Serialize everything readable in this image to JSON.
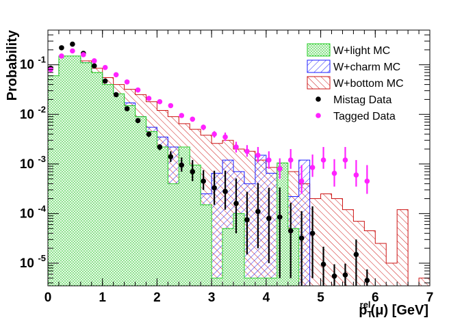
{
  "chart_data": {
    "type": "histogram",
    "ylabel": "Probability",
    "xlabel": {
      "main": "p",
      "sub": "T",
      "sup": "rel",
      "arg": "(μ) [GeV]"
    },
    "xlim": [
      0,
      7
    ],
    "ylim": [
      3.5e-06,
      0.5
    ],
    "yscale": "log",
    "bin_width": 0.2,
    "x_ticks": [
      0,
      1,
      2,
      3,
      4,
      5,
      6,
      7
    ],
    "x_tick_labels": [
      "0",
      "1",
      "2",
      "3",
      "4",
      "5",
      "6",
      "7"
    ],
    "y_ticks": [
      1e-05,
      0.0001,
      0.001,
      0.01,
      0.1
    ],
    "y_tick_labels": [
      {
        "base": "10",
        "exp": "-5"
      },
      {
        "base": "10",
        "exp": "-4"
      },
      {
        "base": "10",
        "exp": "-3"
      },
      {
        "base": "10",
        "exp": "-2"
      },
      {
        "base": "10",
        "exp": "-1"
      }
    ],
    "legend": {
      "position": "top-right",
      "entries": [
        {
          "label": "W+light MC",
          "kind": "light"
        },
        {
          "label": "W+charm MC",
          "kind": "charm"
        },
        {
          "label": "W+bottom MC",
          "kind": "bottom"
        },
        {
          "label": "Mistag Data",
          "kind": "mistag"
        },
        {
          "label": "Tagged Data",
          "kind": "tagged"
        }
      ]
    },
    "colors": {
      "light": "#22cc22",
      "charm": "#1a1aff",
      "bottom": "#cc1111",
      "mistag": "#000000",
      "tagged": "#ff22ff"
    },
    "histograms": [
      {
        "name": "W+bottom MC",
        "kind": "bottom",
        "values": [
          0.047,
          0.1,
          0.13,
          0.12,
          0.085,
          0.055,
          0.04,
          0.032,
          0.025,
          0.018,
          0.012,
          0.009,
          0.0065,
          0.005,
          0.0038,
          0.0026,
          0.003,
          0.002,
          0.0018,
          0.0012,
          0.00085,
          0.00055,
          0.0007,
          0.0004,
          0.0002,
          0.00025,
          0.0002,
          0.00012,
          7e-05,
          4.5e-05,
          2.5e-05,
          1e-05,
          0.00012,
          0.0,
          5e-06,
          0.0
        ]
      },
      {
        "name": "W+charm MC",
        "kind": "charm",
        "values": [
          0.05,
          0.12,
          0.14,
          0.11,
          0.065,
          0.038,
          0.025,
          0.017,
          0.009,
          0.0055,
          0.0035,
          0.0022,
          0.0015,
          0.00065,
          0.00025,
          0.00065,
          0.0012,
          0.0007,
          0.0004,
          0.0015,
          0.00065,
          0.00025,
          0.00022,
          0.0012,
          0.0,
          0.0,
          0.0,
          0.0,
          0.0,
          0.0,
          0.0,
          0.0,
          0.0,
          0.0,
          0.0,
          0.0
        ]
      },
      {
        "name": "W+light MC",
        "kind": "light",
        "values": [
          0.06,
          0.15,
          0.15,
          0.11,
          0.07,
          0.04,
          0.026,
          0.015,
          0.009,
          0.0045,
          0.0022,
          0.0004,
          0.0022,
          0.00095,
          0.00015,
          5e-06,
          5e-05,
          0.0001,
          5e-06,
          5e-06,
          5e-06,
          0.00105,
          5e-05,
          0.0,
          0.0,
          0.0,
          0.0,
          0.0,
          0.0,
          0.0,
          0.0,
          0.0,
          0.0,
          0.0,
          0.0,
          0.0
        ]
      }
    ],
    "mistag_data": {
      "x": [
        0.05,
        0.25,
        0.45,
        0.65,
        0.85,
        1.05,
        1.25,
        1.45,
        1.65,
        1.85,
        2.05,
        2.25,
        2.45,
        2.65,
        2.85,
        3.05,
        3.25,
        3.45,
        3.65,
        3.85,
        4.05,
        4.25,
        4.45,
        4.65,
        4.85,
        5.05,
        5.25,
        5.45,
        5.65,
        5.85
      ],
      "y": [
        0.085,
        0.22,
        0.26,
        0.17,
        0.095,
        0.047,
        0.025,
        0.013,
        0.0075,
        0.004,
        0.0022,
        0.0014,
        0.00095,
        0.0007,
        0.00045,
        0.00033,
        0.00028,
        0.00016,
        7.5e-05,
        0.00011,
        8e-05,
        8.5e-05,
        4.5e-05,
        3.2e-05,
        4e-05,
        9.5e-06,
        5.5e-06,
        5.8e-06,
        1.5e-05,
        4.5e-06
      ],
      "err_lo": [
        0.005,
        0.01,
        0.01,
        0.01,
        0.006,
        0.003,
        0.002,
        0.001,
        0.0008,
        0.0005,
        0.0003,
        0.0003,
        0.00025,
        0.00025,
        0.00015,
        0.00018,
        0.00016,
        0.00012,
        6e-05,
        9e-05,
        7e-05,
        8e-05,
        4e-05,
        3e-05,
        3.5e-05,
        7e-06,
        4e-06,
        4e-06,
        1.2e-05,
        3e-06
      ],
      "err_hi": [
        0.005,
        0.01,
        0.01,
        0.01,
        0.006,
        0.003,
        0.002,
        0.001,
        0.0008,
        0.0005,
        0.0003,
        0.0004,
        0.0004,
        0.0005,
        0.0003,
        0.0004,
        0.00045,
        0.00035,
        0.0002,
        0.0003,
        0.00025,
        0.00025,
        0.00012,
        8e-05,
        0.0001,
        1.2e-05,
        4e-06,
        4e-06,
        1.5e-05,
        3e-06
      ]
    },
    "tagged_data": {
      "x": [
        0.05,
        0.25,
        0.45,
        0.65,
        0.85,
        1.05,
        1.25,
        1.45,
        1.65,
        1.85,
        2.05,
        2.25,
        2.45,
        2.65,
        2.85,
        3.05,
        3.25,
        3.45,
        3.65,
        3.85,
        4.05,
        4.25,
        4.45,
        4.65,
        4.85,
        5.05,
        5.25,
        5.45,
        5.65,
        5.85
      ],
      "y": [
        0.08,
        0.15,
        0.19,
        0.16,
        0.12,
        0.088,
        0.063,
        0.045,
        0.031,
        0.021,
        0.018,
        0.015,
        0.0095,
        0.008,
        0.0055,
        0.004,
        0.0035,
        0.0022,
        0.0018,
        0.0015,
        0.0012,
        0.0008,
        0.0012,
        0.00045,
        0.00085,
        0.0012,
        0.00065,
        0.0012,
        0.0006,
        0.00045
      ],
      "err_lo": [
        0.005,
        0.008,
        0.01,
        0.008,
        0.006,
        0.005,
        0.004,
        0.003,
        0.002,
        0.0015,
        0.0013,
        0.0012,
        0.0009,
        0.0009,
        0.0007,
        0.0006,
        0.0006,
        0.0005,
        0.0004,
        0.0004,
        0.0004,
        0.0003,
        0.0004,
        0.0002,
        0.0003,
        0.0004,
        0.0003,
        0.0004,
        0.00025,
        0.0002
      ],
      "err_hi": [
        0.005,
        0.008,
        0.01,
        0.008,
        0.006,
        0.005,
        0.004,
        0.003,
        0.002,
        0.0015,
        0.0013,
        0.0012,
        0.0009,
        0.0009,
        0.0007,
        0.0006,
        0.0008,
        0.0006,
        0.0006,
        0.0007,
        0.0006,
        0.0005,
        0.0008,
        0.0005,
        0.0007,
        0.001,
        0.0006,
        0.001,
        0.0006,
        0.0005
      ]
    }
  }
}
